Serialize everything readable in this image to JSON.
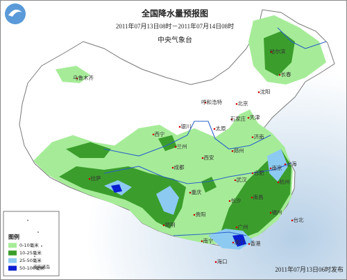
{
  "header": {
    "title": "全国降水量预报图",
    "period": "2011年07月13日08时－2011年07月14日08时",
    "issuer": "中央气象台"
  },
  "legend": {
    "title": "图例",
    "items": [
      {
        "label": "0-10毫米",
        "color": "#a6ec98"
      },
      {
        "label": "10-25毫米",
        "color": "#3b9e2c"
      },
      {
        "label": "25-50毫米",
        "color": "#8ccaf2"
      },
      {
        "label": "50-100毫米",
        "color": "#0a1ed2"
      }
    ]
  },
  "cities": [
    "乌鲁木齐",
    "哈尔滨",
    "长春",
    "沈阳",
    "北京",
    "天津",
    "呼和浩特",
    "石家庄",
    "太原",
    "济南",
    "银川",
    "西宁",
    "兰州",
    "郑州",
    "西安",
    "南京",
    "合肥",
    "上海",
    "杭州",
    "武汉",
    "成都",
    "重庆",
    "拉萨",
    "长沙",
    "南昌",
    "贵阳",
    "福州",
    "台北",
    "昆明",
    "南宁",
    "广州",
    "香港",
    "澳门",
    "海口"
  ],
  "inset_label": "南海诸岛",
  "footer": "2011年07月13日06时发布"
}
